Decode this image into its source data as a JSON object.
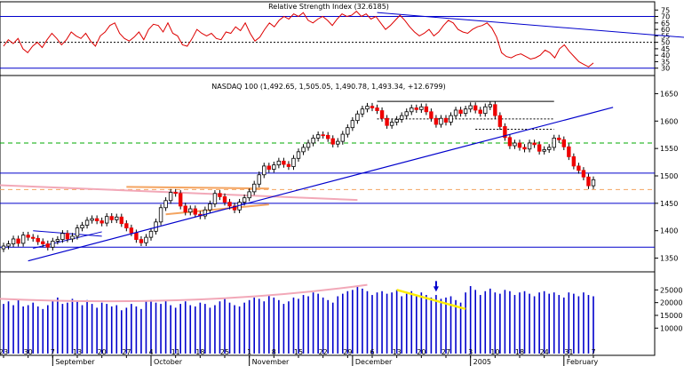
{
  "chart_data": [
    {
      "type": "line",
      "title": "Relative Strength Index (32.6185)",
      "ylim": [
        25,
        80
      ],
      "yticks": [
        30,
        35,
        40,
        45,
        50,
        55,
        60,
        65,
        70,
        75
      ],
      "levels": {
        "upper": 70,
        "mid": 50,
        "lower": 30
      },
      "series": [
        {
          "values": [
            47,
            52,
            49,
            53,
            45,
            42,
            47,
            50,
            46,
            52,
            57,
            53,
            48,
            52,
            58,
            55,
            53,
            57,
            51,
            47,
            55,
            58,
            63,
            65,
            57,
            53,
            51,
            54,
            58,
            52,
            60,
            64,
            63,
            58,
            65,
            57,
            55,
            48,
            47,
            53,
            60,
            57,
            55,
            57,
            53,
            52,
            58,
            57,
            62,
            59,
            65,
            57,
            51,
            54,
            60,
            65,
            62,
            67,
            70,
            68,
            72,
            70,
            73,
            67,
            65,
            68,
            70,
            67,
            63,
            68,
            72,
            70,
            71,
            74,
            70,
            72,
            68,
            70,
            65,
            60,
            63,
            67,
            71,
            67,
            62,
            58,
            55,
            57,
            60,
            55,
            58,
            63,
            67,
            65,
            60,
            58,
            57,
            60,
            62,
            63,
            65,
            61,
            54,
            42,
            39,
            38,
            40,
            41,
            39,
            37,
            38,
            40,
            44,
            42,
            38,
            45,
            48,
            43,
            39,
            35,
            33,
            31,
            34
          ]
        }
      ],
      "trendline": [
        {
          "x": 76,
          "y": 73
        },
        {
          "x": 151,
          "y": 50
        }
      ]
    },
    {
      "type": "candlestick",
      "title": "NASDAQ 100 (1,492.65, 1,505.05, 1,490.78, 1,493.34, +12.6799)",
      "ylim": [
        1325,
        1675
      ],
      "yticks": [
        1350,
        1400,
        1450,
        1500,
        1550,
        1600,
        1650
      ],
      "x_labels": [
        "23",
        "30",
        "7",
        "13",
        "20",
        "27",
        "4",
        "11",
        "18",
        "25",
        "1",
        "8",
        "15",
        "22",
        "29",
        "6",
        "13",
        "20",
        "27",
        "3",
        "10",
        "18",
        "24",
        "31",
        "7"
      ],
      "x_label_indices": [
        0,
        5,
        10,
        15,
        20,
        25,
        30,
        35,
        40,
        45,
        50,
        55,
        60,
        65,
        70,
        75,
        80,
        85,
        90,
        95,
        100,
        105,
        110,
        115,
        120
      ],
      "month_labels": [
        {
          "index": 10,
          "label": "September"
        },
        {
          "index": 30,
          "label": "October"
        },
        {
          "index": 50,
          "label": "November"
        },
        {
          "index": 71,
          "label": "December"
        },
        {
          "index": 95,
          "label": "2005"
        },
        {
          "index": 114,
          "label": "February"
        }
      ],
      "closes": [
        1372,
        1376,
        1385,
        1377,
        1392,
        1388,
        1386,
        1380,
        1376,
        1370,
        1381,
        1384,
        1395,
        1385,
        1390,
        1405,
        1410,
        1419,
        1422,
        1418,
        1414,
        1426,
        1420,
        1425,
        1413,
        1405,
        1396,
        1384,
        1378,
        1388,
        1399,
        1416,
        1442,
        1455,
        1470,
        1468,
        1445,
        1434,
        1440,
        1430,
        1427,
        1438,
        1449,
        1468,
        1462,
        1452,
        1445,
        1438,
        1452,
        1460,
        1471,
        1485,
        1502,
        1518,
        1512,
        1520,
        1527,
        1521,
        1517,
        1532,
        1544,
        1552,
        1560,
        1569,
        1575,
        1574,
        1568,
        1558,
        1563,
        1576,
        1588,
        1601,
        1613,
        1622,
        1627,
        1624,
        1619,
        1605,
        1592,
        1598,
        1603,
        1610,
        1617,
        1624,
        1621,
        1626,
        1617,
        1605,
        1594,
        1605,
        1598,
        1610,
        1620,
        1614,
        1622,
        1628,
        1620,
        1614,
        1626,
        1630,
        1610,
        1590,
        1570,
        1555,
        1560,
        1552,
        1549,
        1560,
        1557,
        1545,
        1548,
        1552,
        1569,
        1566,
        1553,
        1535,
        1518,
        1510,
        1498,
        1482,
        1493
      ],
      "lows_low_index": 0,
      "trendline": [
        {
          "x": 5,
          "y": 1345
        },
        {
          "x": 124,
          "y": 1625
        }
      ],
      "levels": [
        {
          "value": 1505,
          "color": "#0000cc",
          "style": "solid"
        },
        {
          "value": 1450,
          "color": "#0000cc",
          "style": "solid"
        },
        {
          "value": 1370,
          "color": "#0000cc",
          "style": "solid"
        },
        {
          "value": 1560,
          "color": "#00aa00",
          "style": "dashed"
        },
        {
          "value": 1475,
          "color": "#f4a460",
          "style": "dashed"
        }
      ]
    },
    {
      "type": "bar",
      "title": "",
      "ylim": [
        0,
        30000
      ],
      "yticks": [
        10000,
        15000,
        20000,
        25000
      ],
      "values": [
        19500,
        20500,
        19000,
        21000,
        18500,
        19000,
        20000,
        18500,
        17500,
        19000,
        21000,
        22000,
        19500,
        20000,
        21500,
        20500,
        19000,
        21000,
        19500,
        18000,
        20000,
        19500,
        18500,
        19000,
        17000,
        18000,
        19500,
        18500,
        17500,
        20500,
        21000,
        20000,
        19500,
        21000,
        19000,
        18000,
        19500,
        20500,
        19000,
        18500,
        20000,
        19500,
        18000,
        19000,
        20500,
        21500,
        20000,
        19000,
        18500,
        20000,
        21000,
        22000,
        21500,
        20500,
        23000,
        22000,
        21000,
        19500,
        20500,
        22000,
        21500,
        23000,
        22500,
        24000,
        23500,
        22000,
        21000,
        20000,
        22500,
        23500,
        24500,
        25000,
        26500,
        25500,
        24500,
        23000,
        24000,
        24500,
        23500,
        24000,
        25000,
        22500,
        23500,
        24500,
        23000,
        24000,
        23000,
        22000,
        23000,
        21500,
        22000,
        22500,
        21000,
        20000,
        24000,
        26500,
        25000,
        23000,
        24500,
        25500,
        24000,
        23500,
        25000,
        24500,
        23000,
        24000,
        24500,
        23500,
        22500,
        24000,
        24500,
        23500,
        24000,
        23000,
        22000,
        24000,
        23500,
        22500,
        24000,
        23000,
        22500
      ]
    }
  ]
}
